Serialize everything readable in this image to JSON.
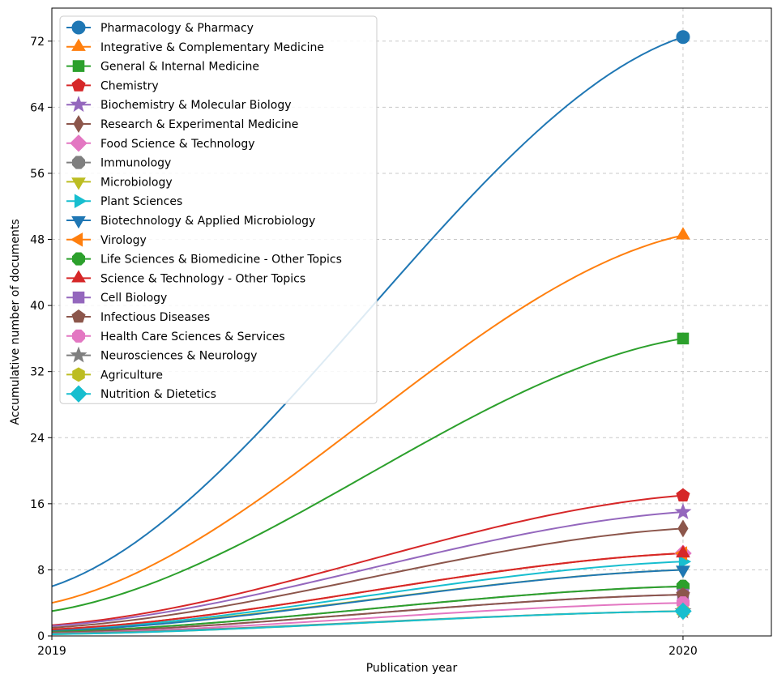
{
  "chart_data": {
    "type": "line",
    "title": "",
    "xlabel": "Publication year",
    "ylabel": "Accumulative number of documents",
    "x": [
      2019,
      2020
    ],
    "xlim": [
      2019,
      2020.14
    ],
    "ylim": [
      0,
      76
    ],
    "xticks": [
      2019,
      2020
    ],
    "yticks": [
      0,
      8,
      16,
      24,
      32,
      40,
      48,
      56,
      64,
      72
    ],
    "grid": true,
    "legend_position": "top-left",
    "series": [
      {
        "name": "Pharmacology & Pharmacy",
        "values": [
          6,
          72.5
        ],
        "color": "#1f77b4",
        "marker": "circle"
      },
      {
        "name": "Integrative & Complementary Medicine",
        "values": [
          4,
          48.5
        ],
        "color": "#ff7f0e",
        "marker": "triangle-up"
      },
      {
        "name": "General & Internal Medicine",
        "values": [
          3,
          36
        ],
        "color": "#2ca02c",
        "marker": "square"
      },
      {
        "name": "Chemistry",
        "values": [
          1.3,
          17
        ],
        "color": "#d62728",
        "marker": "pentagon"
      },
      {
        "name": "Biochemistry & Molecular Biology",
        "values": [
          1.2,
          15
        ],
        "color": "#9467bd",
        "marker": "star"
      },
      {
        "name": "Research & Experimental Medicine",
        "values": [
          1,
          13
        ],
        "color": "#8c564b",
        "marker": "diamond-thin"
      },
      {
        "name": "Food Science & Technology",
        "values": [
          0.8,
          10
        ],
        "color": "#e377c2",
        "marker": "diamond"
      },
      {
        "name": "Immunology",
        "values": [
          0.5,
          6
        ],
        "color": "#7f7f7f",
        "marker": "octagon"
      },
      {
        "name": "Microbiology",
        "values": [
          0.7,
          8
        ],
        "color": "#bcbd22",
        "marker": "triangle-down"
      },
      {
        "name": "Plant Sciences",
        "values": [
          0.7,
          9
        ],
        "color": "#17becf",
        "marker": "triangle-right"
      },
      {
        "name": "Biotechnology & Applied Microbiology",
        "values": [
          0.6,
          8
        ],
        "color": "#1f77b4",
        "marker": "triangle-down"
      },
      {
        "name": "Virology",
        "values": [
          0.8,
          10
        ],
        "color": "#ff7f0e",
        "marker": "triangle-left"
      },
      {
        "name": "Life Sciences & Biomedicine - Other Topics",
        "values": [
          0.5,
          6
        ],
        "color": "#2ca02c",
        "marker": "octagon"
      },
      {
        "name": "Science & Technology - Other Topics",
        "values": [
          0.8,
          10
        ],
        "color": "#d62728",
        "marker": "triangle-up"
      },
      {
        "name": "Cell Biology",
        "values": [
          0.4,
          5
        ],
        "color": "#9467bd",
        "marker": "square"
      },
      {
        "name": "Infectious Diseases",
        "values": [
          0.4,
          5
        ],
        "color": "#8c564b",
        "marker": "pentagon"
      },
      {
        "name": "Health Care Sciences & Services",
        "values": [
          0.3,
          4
        ],
        "color": "#e377c2",
        "marker": "octagon"
      },
      {
        "name": "Neurosciences & Neurology",
        "values": [
          0.3,
          3
        ],
        "color": "#7f7f7f",
        "marker": "star"
      },
      {
        "name": "Agriculture",
        "values": [
          0.2,
          3
        ],
        "color": "#bcbd22",
        "marker": "hexagon"
      },
      {
        "name": "Nutrition & Dietetics",
        "values": [
          0.2,
          3
        ],
        "color": "#17becf",
        "marker": "diamond"
      }
    ]
  }
}
